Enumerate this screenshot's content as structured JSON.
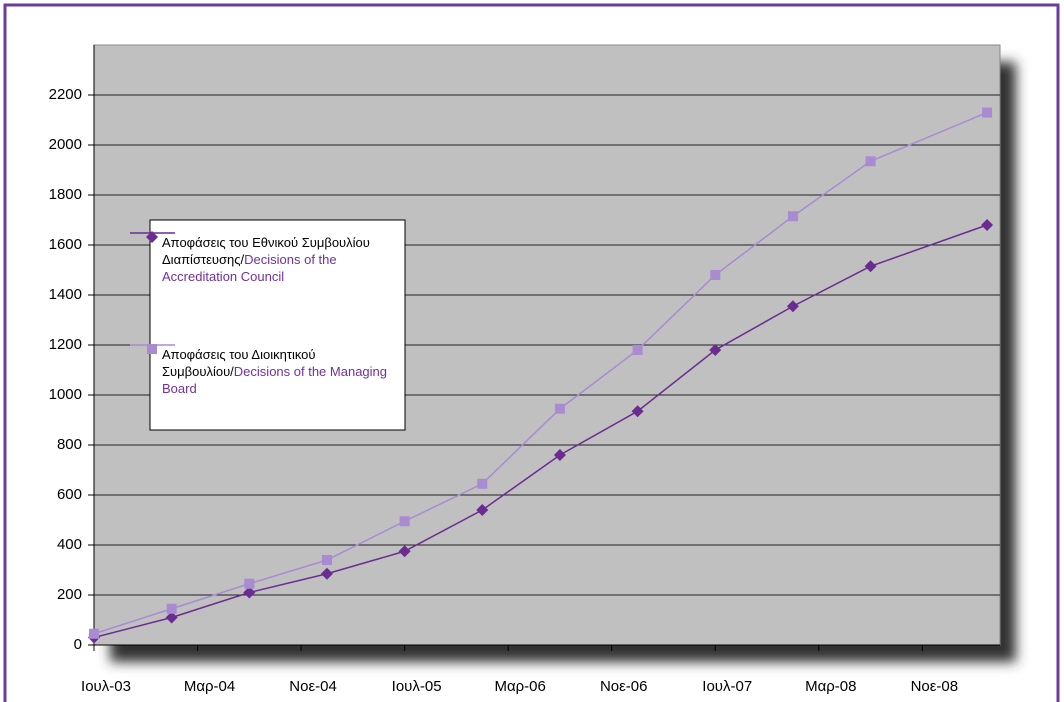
{
  "chart_data": {
    "type": "line",
    "xlim": [
      0,
      70
    ],
    "xticks": [
      {
        "value": 0,
        "label": "Ιουλ-03"
      },
      {
        "value": 8,
        "label": "Μαρ-04"
      },
      {
        "value": 16,
        "label": "Νοε-04"
      },
      {
        "value": 24,
        "label": "Ιουλ-05"
      },
      {
        "value": 32,
        "label": "Μαρ-06"
      },
      {
        "value": 40,
        "label": "Νοε-06"
      },
      {
        "value": 48,
        "label": "Ιουλ-07"
      },
      {
        "value": 56,
        "label": "Μαρ-08"
      },
      {
        "value": 64,
        "label": "Νοε-08"
      }
    ],
    "x": [
      0,
      6,
      12,
      18,
      24,
      30,
      36,
      42,
      48,
      54,
      60,
      69
    ],
    "ylim": [
      0,
      2400
    ],
    "yticks": [
      0,
      200,
      400,
      600,
      800,
      1000,
      1200,
      1400,
      1600,
      1800,
      2000,
      2200
    ],
    "grid": true,
    "series": [
      {
        "name": "Αποφάσεις του Εθνικού Συμβουλίου Διαπίστευσης/Decisions of the Accreditation Council",
        "color": "#6a2c91",
        "marker": "diamond",
        "values": [
          30,
          110,
          210,
          285,
          375,
          540,
          760,
          935,
          1180,
          1355,
          1515,
          1680
        ]
      },
      {
        "name": "Αποφάσεις του Διοικητικού Συμβουλίου/Decisions of the Managing Board",
        "color": "#a88bd1",
        "marker": "square",
        "values": [
          45,
          145,
          245,
          340,
          495,
          645,
          945,
          1180,
          1480,
          1715,
          1935,
          2130
        ]
      }
    ]
  }
}
